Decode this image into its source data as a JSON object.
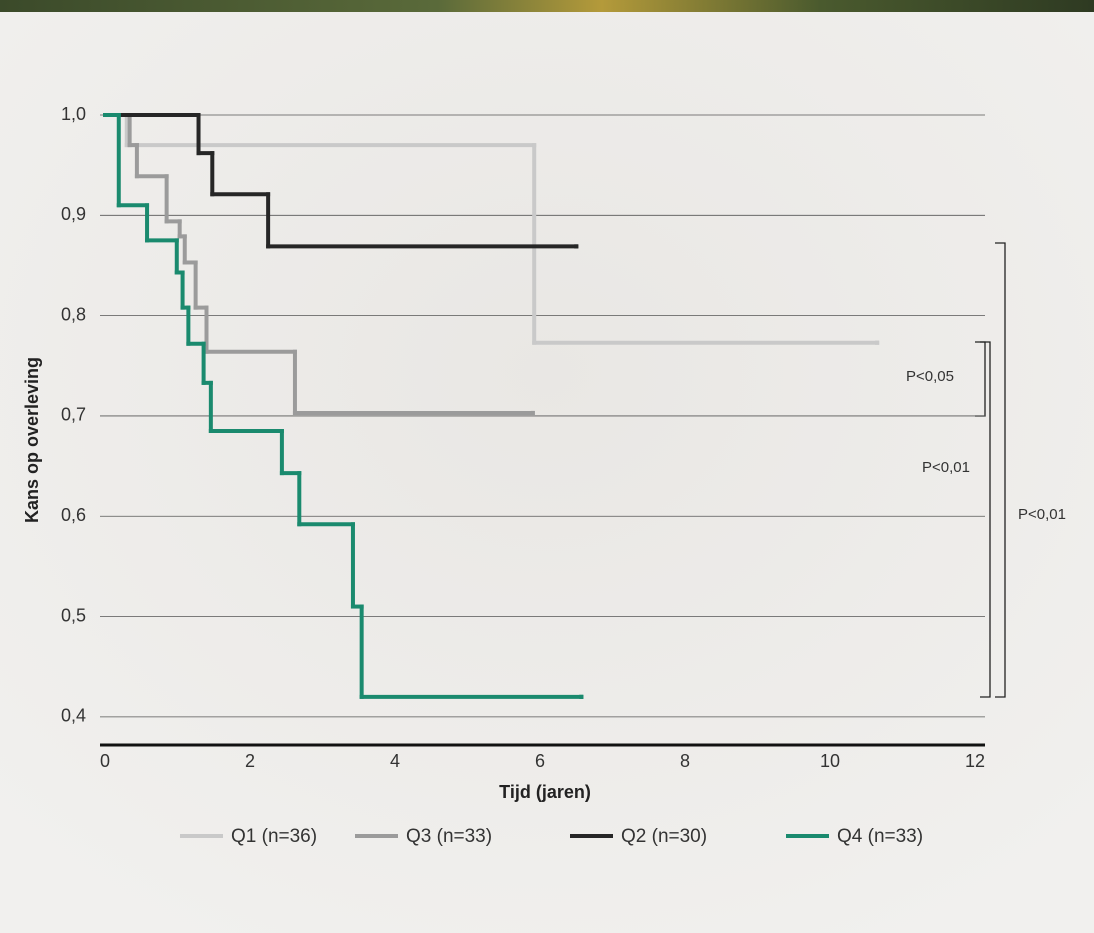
{
  "chart_data": {
    "type": "step",
    "y_label": "Kans op overleving",
    "x_label": "Tijd (jaren)",
    "xlim": [
      0,
      12
    ],
    "xticks": [
      0,
      2,
      4,
      6,
      8,
      10,
      12
    ],
    "ylim": [
      0.372,
      1.0
    ],
    "yticks": [
      {
        "value": 0.4,
        "label": "0,4"
      },
      {
        "value": 0.5,
        "label": "0,5"
      },
      {
        "value": 0.6,
        "label": "0,6"
      },
      {
        "value": 0.7,
        "label": "0,7"
      },
      {
        "value": 0.8,
        "label": "0,8"
      },
      {
        "value": 0.9,
        "label": "0,9"
      },
      {
        "value": 1.0,
        "label": "1,0"
      }
    ],
    "grid": true,
    "annotations": [
      "P<0,05",
      "P<0,01",
      "P<0,01"
    ],
    "series": [
      {
        "name": "Q1 (n=36)",
        "color": "#c9c9c9",
        "x": [
          0,
          0.3,
          5.92,
          10.65
        ],
        "values": [
          1.0,
          0.97,
          0.773,
          0.773
        ]
      },
      {
        "name": "Q3 (n=33)",
        "color": "#9b9b9b",
        "x": [
          0,
          0.34,
          0.44,
          0.85,
          1.03,
          1.1,
          1.25,
          1.4,
          2.62,
          5.9
        ],
        "values": [
          1.0,
          0.97,
          0.939,
          0.894,
          0.879,
          0.853,
          0.808,
          0.764,
          0.703,
          0.703
        ]
      },
      {
        "name": "Q2 (n=30)",
        "color": "#262626",
        "x": [
          0,
          1.29,
          1.48,
          2.25,
          6.5
        ],
        "values": [
          1.0,
          0.962,
          0.921,
          0.869,
          0.869
        ]
      },
      {
        "name": "Q4 (n=33)",
        "color": "#1a8a6e",
        "x": [
          0,
          0.19,
          0.58,
          0.99,
          1.07,
          1.15,
          1.36,
          1.46,
          2.44,
          2.68,
          3.42,
          3.54,
          6.57
        ],
        "values": [
          1.0,
          0.91,
          0.875,
          0.843,
          0.808,
          0.772,
          0.733,
          0.685,
          0.643,
          0.592,
          0.51,
          0.42,
          0.42
        ]
      }
    ]
  }
}
